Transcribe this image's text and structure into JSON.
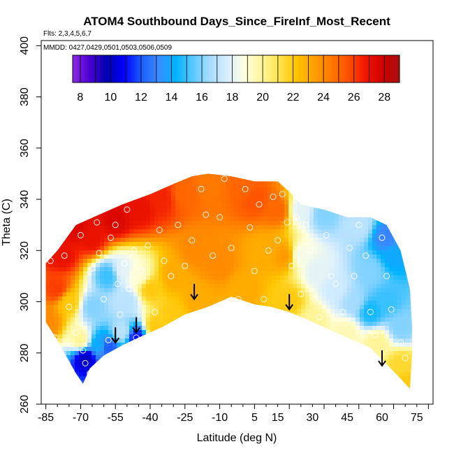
{
  "chart_data": {
    "type": "heatmap",
    "title": "ATOM4 Southbound Days_Since_FireInf_Most_Recent",
    "subtitle_flights": "Flts: 2,3,4,5,6,7",
    "subtitle_dates": "MMDD: 0427,0429,0501,0503,0506,0509",
    "xlabel": "Latitude (deg N)",
    "ylabel": "Theta (C)",
    "xlim": [
      -87,
      82
    ],
    "ylim": [
      260,
      402
    ],
    "x_ticks": [
      "-85",
      "-70",
      "-55",
      "-40",
      "-25",
      "-10",
      "5",
      "15",
      "30",
      "45",
      "60",
      "75"
    ],
    "x_tick_values": [
      -85,
      -70,
      -55,
      -40,
      -25,
      -10,
      5,
      15,
      30,
      45,
      60,
      75
    ],
    "y_ticks": [
      "260",
      "280",
      "300",
      "320",
      "340",
      "360",
      "380",
      "400"
    ],
    "y_tick_values": [
      260,
      280,
      300,
      320,
      340,
      360,
      380,
      400
    ],
    "colorbar": {
      "min": 7.5,
      "max": 29,
      "tick_labels": [
        "8",
        "10",
        "12",
        "14",
        "16",
        "18",
        "20",
        "22",
        "24",
        "26",
        "28"
      ],
      "tick_values": [
        8,
        10,
        12,
        14,
        16,
        18,
        20,
        22,
        24,
        26,
        28
      ],
      "colors": [
        "#8a2be2",
        "#4b00d1",
        "#0000b0",
        "#0000ff",
        "#1e5cff",
        "#3a8cff",
        "#00b4ff",
        "#5cc8ff",
        "#a8dcff",
        "#d8eeff",
        "#ffffe0",
        "#fff59a",
        "#ffe44d",
        "#ffc400",
        "#ffa000",
        "#ff7a00",
        "#ff5000",
        "#f01800",
        "#d00000",
        "#a81010"
      ]
    },
    "field_samples": [
      {
        "lat": -84,
        "theta": 292,
        "value": 24
      },
      {
        "lat": -80,
        "theta": 305,
        "value": 26
      },
      {
        "lat": -78,
        "theta": 318,
        "value": 27
      },
      {
        "lat": -72,
        "theta": 330,
        "value": 27.5
      },
      {
        "lat": -65,
        "theta": 325,
        "value": 27
      },
      {
        "lat": -55,
        "theta": 332,
        "value": 27.5
      },
      {
        "lat": -45,
        "theta": 336,
        "value": 27
      },
      {
        "lat": -35,
        "theta": 340,
        "value": 26.5
      },
      {
        "lat": -25,
        "theta": 342,
        "value": 25
      },
      {
        "lat": -15,
        "theta": 345,
        "value": 24.5
      },
      {
        "lat": 0,
        "theta": 345,
        "value": 25
      },
      {
        "lat": 5,
        "theta": 340,
        "value": 25.5
      },
      {
        "lat": 15,
        "theta": 336,
        "value": 25
      },
      {
        "lat": 25,
        "theta": 336,
        "value": 18
      },
      {
        "lat": 35,
        "theta": 334,
        "value": 16
      },
      {
        "lat": 50,
        "theta": 330,
        "value": 17
      },
      {
        "lat": 62,
        "theta": 325,
        "value": 13
      },
      {
        "lat": -75,
        "theta": 300,
        "value": 22
      },
      {
        "lat": -65,
        "theta": 298,
        "value": 16
      },
      {
        "lat": -58,
        "theta": 310,
        "value": 15
      },
      {
        "lat": -52,
        "theta": 312,
        "value": 18
      },
      {
        "lat": -50,
        "theta": 300,
        "value": 17
      },
      {
        "lat": -45,
        "theta": 310,
        "value": 19
      },
      {
        "lat": -40,
        "theta": 305,
        "value": 22
      },
      {
        "lat": -30,
        "theta": 310,
        "value": 23
      },
      {
        "lat": -20,
        "theta": 320,
        "value": 24
      },
      {
        "lat": -10,
        "theta": 315,
        "value": 24
      },
      {
        "lat": 0,
        "theta": 305,
        "value": 23
      },
      {
        "lat": 10,
        "theta": 320,
        "value": 23
      },
      {
        "lat": 18,
        "theta": 318,
        "value": 23.5
      },
      {
        "lat": 25,
        "theta": 318,
        "value": 18.5
      },
      {
        "lat": 32,
        "theta": 312,
        "value": 18
      },
      {
        "lat": 40,
        "theta": 305,
        "value": 17.5
      },
      {
        "lat": 48,
        "theta": 300,
        "value": 16.5
      },
      {
        "lat": 55,
        "theta": 296,
        "value": 14.5
      },
      {
        "lat": 62,
        "theta": 300,
        "value": 15
      },
      {
        "lat": 68,
        "theta": 290,
        "value": 16
      },
      {
        "lat": 55,
        "theta": 312,
        "value": 16
      },
      {
        "lat": 65,
        "theta": 318,
        "value": 14
      },
      {
        "lat": -70,
        "theta": 285,
        "value": 20
      },
      {
        "lat": -68,
        "theta": 278,
        "value": 10
      },
      {
        "lat": -62,
        "theta": 283,
        "value": 14
      },
      {
        "lat": -58,
        "theta": 282,
        "value": 12
      },
      {
        "lat": -52,
        "theta": 288,
        "value": 17
      },
      {
        "lat": -46,
        "theta": 286,
        "value": 11
      },
      {
        "lat": -38,
        "theta": 290,
        "value": 22
      },
      {
        "lat": -30,
        "theta": 295,
        "value": 22
      },
      {
        "lat": -20,
        "theta": 300,
        "value": 23
      },
      {
        "lat": 20,
        "theta": 300,
        "value": 22
      },
      {
        "lat": 30,
        "theta": 292,
        "value": 20
      },
      {
        "lat": 45,
        "theta": 288,
        "value": 19.5
      },
      {
        "lat": 58,
        "theta": 284,
        "value": 20
      },
      {
        "lat": 68,
        "theta": 275,
        "value": 21.5
      },
      {
        "lat": 70,
        "theta": 268,
        "value": 22
      }
    ],
    "sample_points": [
      {
        "lat": -83,
        "theta": 316
      },
      {
        "lat": -81,
        "theta": 286
      },
      {
        "lat": -77,
        "theta": 318
      },
      {
        "lat": -75,
        "theta": 298
      },
      {
        "lat": -72,
        "theta": 288
      },
      {
        "lat": -70,
        "theta": 326
      },
      {
        "lat": -69,
        "theta": 281
      },
      {
        "lat": -68,
        "theta": 276
      },
      {
        "lat": -66,
        "theta": 272
      },
      {
        "lat": -65,
        "theta": 313
      },
      {
        "lat": -63,
        "theta": 331
      },
      {
        "lat": -62,
        "theta": 319
      },
      {
        "lat": -60,
        "theta": 301
      },
      {
        "lat": -58,
        "theta": 285
      },
      {
        "lat": -57,
        "theta": 325
      },
      {
        "lat": -55,
        "theta": 330
      },
      {
        "lat": -54,
        "theta": 307
      },
      {
        "lat": -53,
        "theta": 295
      },
      {
        "lat": -51,
        "theta": 315
      },
      {
        "lat": -50,
        "theta": 336
      },
      {
        "lat": -49,
        "theta": 305
      },
      {
        "lat": -47,
        "theta": 320
      },
      {
        "lat": -46,
        "theta": 286
      },
      {
        "lat": -44,
        "theta": 312
      },
      {
        "lat": -41,
        "theta": 322
      },
      {
        "lat": -38,
        "theta": 296
      },
      {
        "lat": -36,
        "theta": 328
      },
      {
        "lat": -34,
        "theta": 316
      },
      {
        "lat": -31,
        "theta": 310
      },
      {
        "lat": -28,
        "theta": 330
      },
      {
        "lat": -25,
        "theta": 314
      },
      {
        "lat": -22,
        "theta": 324
      },
      {
        "lat": -18,
        "theta": 344
      },
      {
        "lat": -16,
        "theta": 334
      },
      {
        "lat": -13,
        "theta": 318
      },
      {
        "lat": -10,
        "theta": 333
      },
      {
        "lat": -8,
        "theta": 348
      },
      {
        "lat": -5,
        "theta": 321
      },
      {
        "lat": -2,
        "theta": 301
      },
      {
        "lat": 1,
        "theta": 344
      },
      {
        "lat": 3,
        "theta": 329
      },
      {
        "lat": 5,
        "theta": 312
      },
      {
        "lat": 7,
        "theta": 338
      },
      {
        "lat": 9,
        "theta": 301
      },
      {
        "lat": 11,
        "theta": 320
      },
      {
        "lat": 13,
        "theta": 341
      },
      {
        "lat": 15,
        "theta": 324
      },
      {
        "lat": 17,
        "theta": 342
      },
      {
        "lat": 19,
        "theta": 331
      },
      {
        "lat": 21,
        "theta": 314
      },
      {
        "lat": 23,
        "theta": 333
      },
      {
        "lat": 25,
        "theta": 303
      },
      {
        "lat": 27,
        "theta": 330
      },
      {
        "lat": 29,
        "theta": 320
      },
      {
        "lat": 31,
        "theta": 301
      },
      {
        "lat": 33,
        "theta": 294
      },
      {
        "lat": 36,
        "theta": 326
      },
      {
        "lat": 38,
        "theta": 310
      },
      {
        "lat": 40,
        "theta": 307
      },
      {
        "lat": 43,
        "theta": 296
      },
      {
        "lat": 46,
        "theta": 321
      },
      {
        "lat": 48,
        "theta": 310
      },
      {
        "lat": 50,
        "theta": 330
      },
      {
        "lat": 53,
        "theta": 318
      },
      {
        "lat": 55,
        "theta": 296
      },
      {
        "lat": 57,
        "theta": 287
      },
      {
        "lat": 60,
        "theta": 325
      },
      {
        "lat": 62,
        "theta": 310
      },
      {
        "lat": 64,
        "theta": 297
      },
      {
        "lat": 66,
        "theta": 327
      },
      {
        "lat": 68,
        "theta": 284
      },
      {
        "lat": 70,
        "theta": 278
      }
    ],
    "arrows": [
      {
        "lat": -55,
        "theta": 284
      },
      {
        "lat": -46,
        "theta": 288
      },
      {
        "lat": -21,
        "theta": 301
      },
      {
        "lat": 20,
        "theta": 297
      },
      {
        "lat": 60,
        "theta": 275
      }
    ]
  }
}
